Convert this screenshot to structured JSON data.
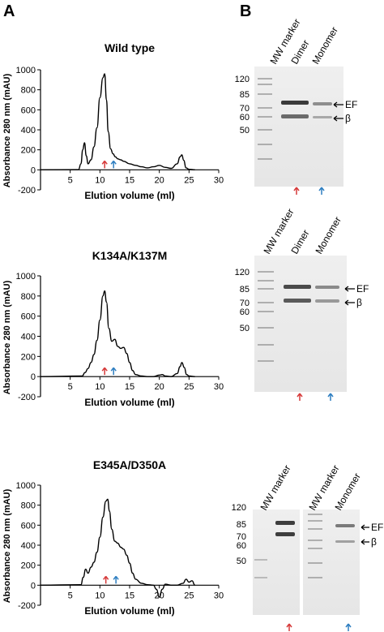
{
  "panel_labels": {
    "a": "A",
    "b": "B"
  },
  "arrow_colors": {
    "dimer": "#d63a3a",
    "monomer": "#2f7fc1"
  },
  "chart_data": [
    {
      "type": "line",
      "title": "Wild type",
      "xlabel": "Elution volume (ml)",
      "ylabel": "Absorbance 280 nm (mAU)",
      "xlim": [
        0,
        30
      ],
      "ylim": [
        -200,
        1000
      ],
      "xticks": [
        5,
        10,
        15,
        20,
        25,
        30
      ],
      "yticks": [
        -200,
        0,
        200,
        400,
        600,
        800,
        1000
      ],
      "grid": false,
      "series": [
        {
          "x": [
            0,
            6.4,
            6.8,
            7.1,
            7.4,
            7.7,
            8.0,
            8.5,
            9.0,
            9.5,
            10.0,
            10.5,
            10.8,
            11.1,
            11.4,
            11.8,
            12.2,
            12.6,
            13.0,
            13.5,
            14.0,
            15.0,
            16.0,
            17.0,
            18.0,
            19.0,
            20.0,
            21.0,
            22.0,
            23.0,
            23.5,
            23.8,
            24.1,
            24.5,
            25.0,
            26.0
          ],
          "y": [
            0,
            2,
            60,
            200,
            270,
            140,
            60,
            100,
            230,
            420,
            720,
            920,
            960,
            700,
            380,
            210,
            160,
            130,
            110,
            100,
            85,
            60,
            45,
            30,
            20,
            30,
            45,
            25,
            15,
            60,
            130,
            150,
            95,
            20,
            5,
            0
          ]
        }
      ],
      "markers": [
        {
          "x": 10.8,
          "series": "dimer"
        },
        {
          "x": 12.3,
          "series": "monomer"
        }
      ]
    },
    {
      "type": "line",
      "title": "K134A/K137M",
      "xlabel": "Elution volume (ml)",
      "ylabel": "Absorbance 280 nm (mAU)",
      "xlim": [
        0,
        30
      ],
      "ylim": [
        -200,
        1000
      ],
      "xticks": [
        5,
        10,
        15,
        20,
        25,
        30
      ],
      "yticks": [
        -200,
        0,
        200,
        400,
        600,
        800,
        1000
      ],
      "grid": false,
      "series": [
        {
          "x": [
            0,
            7.0,
            7.5,
            8.0,
            8.5,
            9.0,
            9.5,
            10.0,
            10.5,
            10.8,
            11.1,
            11.5,
            12.0,
            12.5,
            13.0,
            13.5,
            14.0,
            14.5,
            15.0,
            15.5,
            16.0,
            17.0,
            18.0,
            19.0,
            20.0,
            20.5,
            21.0,
            22.0,
            23.0,
            23.5,
            23.8,
            24.2,
            24.6,
            25.0,
            26.0
          ],
          "y": [
            0,
            5,
            40,
            80,
            140,
            220,
            360,
            560,
            800,
            850,
            740,
            480,
            350,
            370,
            300,
            280,
            290,
            230,
            140,
            60,
            20,
            5,
            0,
            0,
            15,
            20,
            5,
            0,
            30,
            100,
            140,
            90,
            20,
            5,
            0
          ]
        }
      ],
      "markers": [
        {
          "x": 10.8,
          "series": "dimer"
        },
        {
          "x": 12.3,
          "series": "monomer"
        }
      ]
    },
    {
      "type": "line",
      "title": "E345A/D350A",
      "xlabel": "Elution volume (ml)",
      "ylabel": "Absorbance 280 nm (mAU)",
      "xlim": [
        0,
        30
      ],
      "ylim": [
        -200,
        1000
      ],
      "xticks": [
        5,
        10,
        15,
        20,
        25,
        30
      ],
      "yticks": [
        -200,
        0,
        200,
        400,
        600,
        800,
        1000
      ],
      "grid": false,
      "series": [
        {
          "x": [
            0,
            6.8,
            7.2,
            7.6,
            8.0,
            8.5,
            9.0,
            9.5,
            10.0,
            10.5,
            11.0,
            11.3,
            11.6,
            12.0,
            12.5,
            13.0,
            13.5,
            14.0,
            14.5,
            15.0,
            15.5,
            16.0,
            17.0,
            18.0,
            19.0,
            19.5,
            20.0,
            20.5,
            21.0,
            22.0,
            23.0,
            24.0,
            24.5,
            25.0,
            25.5,
            26.0
          ],
          "y": [
            0,
            5,
            80,
            160,
            120,
            180,
            230,
            330,
            480,
            680,
            840,
            860,
            740,
            560,
            440,
            420,
            380,
            360,
            300,
            220,
            120,
            60,
            20,
            5,
            0,
            -40,
            -120,
            -40,
            10,
            0,
            0,
            20,
            60,
            30,
            45,
            0
          ]
        }
      ],
      "markers": [
        {
          "x": 11.0,
          "series": "dimer"
        },
        {
          "x": 12.7,
          "series": "monomer"
        }
      ]
    }
  ],
  "gels": [
    {
      "lane_labels": [
        "MW marker",
        "Dimer",
        "Monomer"
      ],
      "ladder": [
        "120",
        "85",
        "70",
        "60",
        "50"
      ],
      "band_labels": [
        {
          "text": "EF"
        },
        {
          "text": "β"
        }
      ]
    },
    {
      "lane_labels": [
        "MW marker",
        "Dimer",
        "Monomer"
      ],
      "ladder": [
        "120",
        "85",
        "70",
        "60",
        "50"
      ],
      "band_labels": [
        {
          "text": "EF"
        },
        {
          "text": "β"
        }
      ]
    },
    {
      "lane_labels": [
        "MW marker",
        "Monomer"
      ],
      "ladder": [
        "120",
        "85",
        "70",
        "60",
        "50"
      ],
      "band_labels": [
        {
          "text": "EF"
        },
        {
          "text": "β"
        }
      ]
    }
  ]
}
